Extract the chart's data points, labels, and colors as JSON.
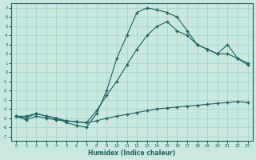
{
  "xlabel": "Humidex (Indice chaleur)",
  "ylabel": "",
  "bg_color": "#c8e8e0",
  "grid_color": "#a8d0c8",
  "line_color": "#1a6060",
  "xlim": [
    -0.5,
    23.5
  ],
  "ylim": [
    -7.5,
    7.5
  ],
  "xticks": [
    0,
    1,
    2,
    3,
    4,
    5,
    6,
    7,
    8,
    9,
    10,
    11,
    12,
    13,
    14,
    15,
    16,
    17,
    18,
    19,
    20,
    21,
    22,
    23
  ],
  "yticks": [
    -7,
    -6,
    -5,
    -4,
    -3,
    -2,
    -1,
    0,
    1,
    2,
    3,
    4,
    5,
    6,
    7
  ],
  "line1_x": [
    0,
    1,
    2,
    3,
    4,
    5,
    6,
    7,
    8,
    9,
    10,
    11,
    12,
    13,
    14,
    15,
    16,
    17,
    18,
    19,
    20,
    21,
    22,
    23
  ],
  "line1_y": [
    -4.8,
    -5.2,
    -4.8,
    -5.0,
    -5.2,
    -5.3,
    -5.4,
    -5.5,
    -5.3,
    -5.0,
    -4.8,
    -4.6,
    -4.4,
    -4.2,
    -4.0,
    -3.9,
    -3.8,
    -3.7,
    -3.6,
    -3.5,
    -3.4,
    -3.3,
    -3.2,
    -3.3
  ],
  "line2_x": [
    0,
    1,
    2,
    3,
    4,
    5,
    6,
    7,
    8,
    9,
    10,
    11,
    12,
    13,
    14,
    15,
    16,
    17,
    18,
    19,
    20,
    21,
    22,
    23
  ],
  "line2_y": [
    -4.8,
    -5.0,
    -4.5,
    -4.8,
    -5.0,
    -5.3,
    -5.4,
    -5.5,
    -4.2,
    -2.5,
    -1.0,
    0.8,
    2.5,
    4.0,
    5.0,
    5.5,
    4.5,
    4.0,
    3.0,
    2.5,
    2.0,
    2.0,
    1.5,
    1.0
  ],
  "line3_x": [
    0,
    1,
    2,
    3,
    4,
    5,
    6,
    7,
    8,
    9,
    10,
    11,
    12,
    13,
    14,
    15,
    16,
    17,
    18,
    19,
    20,
    21,
    22,
    23
  ],
  "line3_y": [
    -4.8,
    -4.8,
    -4.5,
    -4.8,
    -5.0,
    -5.5,
    -5.8,
    -6.0,
    -4.5,
    -2.0,
    1.5,
    4.0,
    6.5,
    7.0,
    6.8,
    6.5,
    6.0,
    4.5,
    3.0,
    2.5,
    2.0,
    3.0,
    1.5,
    0.8
  ],
  "marker": "+",
  "markersize": 3,
  "linewidth": 0.8
}
